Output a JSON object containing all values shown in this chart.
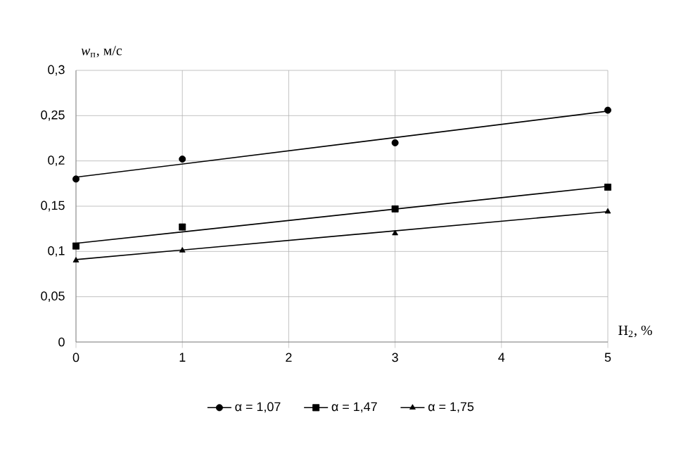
{
  "chart_data": {
    "type": "scatter",
    "xlabel": "H$_{2}$, %",
    "ylabel": "*w*$_{п}$, м/с",
    "xlim": [
      0,
      5
    ],
    "xticks": [
      0,
      1,
      2,
      3,
      4,
      5
    ],
    "ylim": [
      0,
      0.3
    ],
    "yticks": [
      0,
      {
        "value": 0.05,
        "label": "0,05"
      },
      {
        "value": 0.1,
        "label": "0,1"
      },
      {
        "value": 0.15,
        "label": "0,15"
      },
      {
        "value": 0.2,
        "label": "0,2"
      },
      {
        "value": 0.25,
        "label": "0,25"
      },
      {
        "value": 0.3,
        "label": "0,3"
      }
    ],
    "grid": true,
    "legend": "bottom",
    "series": [
      {
        "name": "α = 1,07",
        "color": "#000000",
        "marker": "circle",
        "x": [
          0,
          1,
          3,
          5
        ],
        "values": [
          0.18,
          0.202,
          0.22,
          0.256
        ]
      },
      {
        "name": "α = 1,47",
        "color": "#000000",
        "marker": "square",
        "x": [
          0,
          1,
          3,
          5
        ],
        "values": [
          0.106,
          0.127,
          0.147,
          0.171
        ]
      },
      {
        "name": "α = 1,75",
        "color": "#000000",
        "marker": "triangle",
        "x": [
          0,
          1,
          3,
          5
        ],
        "values": [
          0.09,
          0.101,
          0.12,
          0.144
        ]
      },
      {
        "type": "line",
        "color": "#000000",
        "x": [
          0,
          5
        ],
        "values": [
          0.182,
          0.255
        ]
      },
      {
        "type": "line",
        "color": "#000000",
        "x": [
          0,
          5
        ],
        "values": [
          0.109,
          0.172
        ]
      },
      {
        "type": "line",
        "color": "#000000",
        "x": [
          0,
          5
        ],
        "values": [
          0.091,
          0.144
        ]
      }
    ]
  }
}
